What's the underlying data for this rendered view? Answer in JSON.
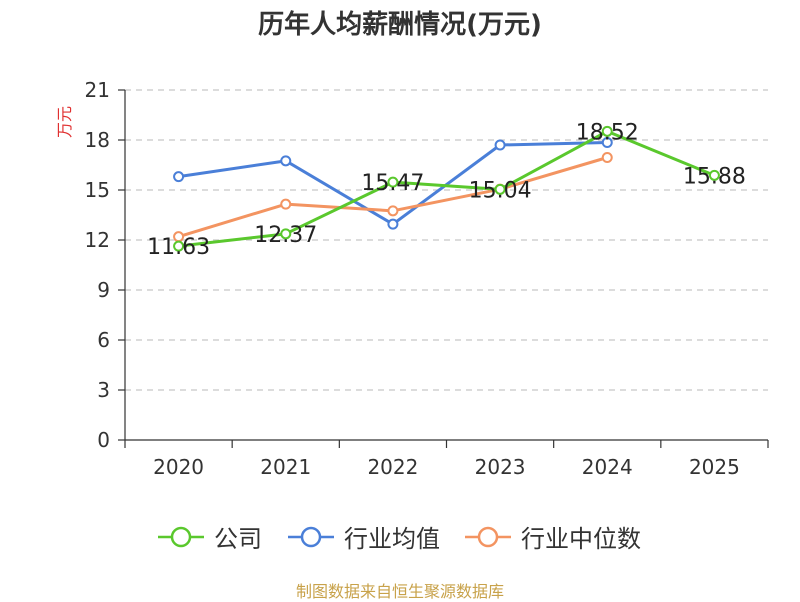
{
  "title": "历年人均薪酬情况(万元)",
  "source": "制图数据来自恒生聚源数据库",
  "chart_data": {
    "type": "line",
    "title": "历年人均薪酬情况(万元)",
    "xlabel": "",
    "ylabel": "万元",
    "categories": [
      "2020",
      "2021",
      "2022",
      "2023",
      "2024",
      "2025"
    ],
    "ylim": [
      0,
      21
    ],
    "yticks": [
      0,
      3,
      6,
      9,
      12,
      15,
      18,
      21
    ],
    "grid": true,
    "legend_position": "bottom",
    "series": [
      {
        "name": "公司",
        "color": "#5ac82d",
        "values": [
          11.63,
          12.37,
          15.47,
          15.04,
          18.52,
          15.88
        ],
        "labels": [
          "11.63",
          "12.37",
          "15.47",
          "15.04",
          "18.52",
          "15.88"
        ]
      },
      {
        "name": "行业均值",
        "color": "#4a7fd8",
        "values": [
          15.8,
          16.75,
          12.95,
          17.7,
          17.85,
          null
        ]
      },
      {
        "name": "行业中位数",
        "color": "#f39461",
        "values": [
          12.2,
          14.15,
          13.75,
          15.05,
          16.95,
          null
        ]
      }
    ]
  }
}
